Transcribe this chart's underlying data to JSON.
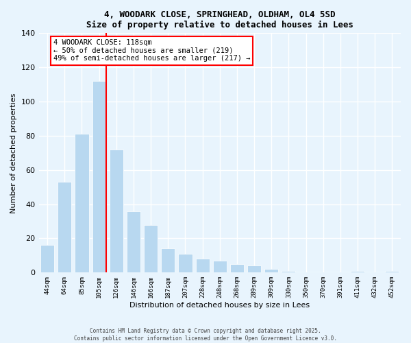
{
  "title": "4, WOODARK CLOSE, SPRINGHEAD, OLDHAM, OL4 5SD",
  "subtitle": "Size of property relative to detached houses in Lees",
  "xlabel": "Distribution of detached houses by size in Lees",
  "ylabel": "Number of detached properties",
  "categories": [
    "44sqm",
    "64sqm",
    "85sqm",
    "105sqm",
    "126sqm",
    "146sqm",
    "166sqm",
    "187sqm",
    "207sqm",
    "228sqm",
    "248sqm",
    "268sqm",
    "289sqm",
    "309sqm",
    "330sqm",
    "350sqm",
    "370sqm",
    "391sqm",
    "411sqm",
    "432sqm",
    "452sqm"
  ],
  "values": [
    16,
    53,
    81,
    112,
    72,
    36,
    28,
    14,
    11,
    8,
    7,
    5,
    4,
    2,
    1,
    0,
    0,
    0,
    1,
    0,
    1
  ],
  "bar_color": "#b8d8f0",
  "bar_edge_color": "#b8d8f0",
  "vline_index": 3,
  "vline_color": "red",
  "ylim": [
    0,
    140
  ],
  "yticks": [
    0,
    20,
    40,
    60,
    80,
    100,
    120,
    140
  ],
  "annotation_text": "4 WOODARK CLOSE: 118sqm\n← 50% of detached houses are smaller (219)\n49% of semi-detached houses are larger (217) →",
  "annotation_box_color": "white",
  "annotation_box_edge": "red",
  "background_color": "#e8f4fd",
  "footnote1": "Contains HM Land Registry data © Crown copyright and database right 2025.",
  "footnote2": "Contains public sector information licensed under the Open Government Licence v3.0."
}
